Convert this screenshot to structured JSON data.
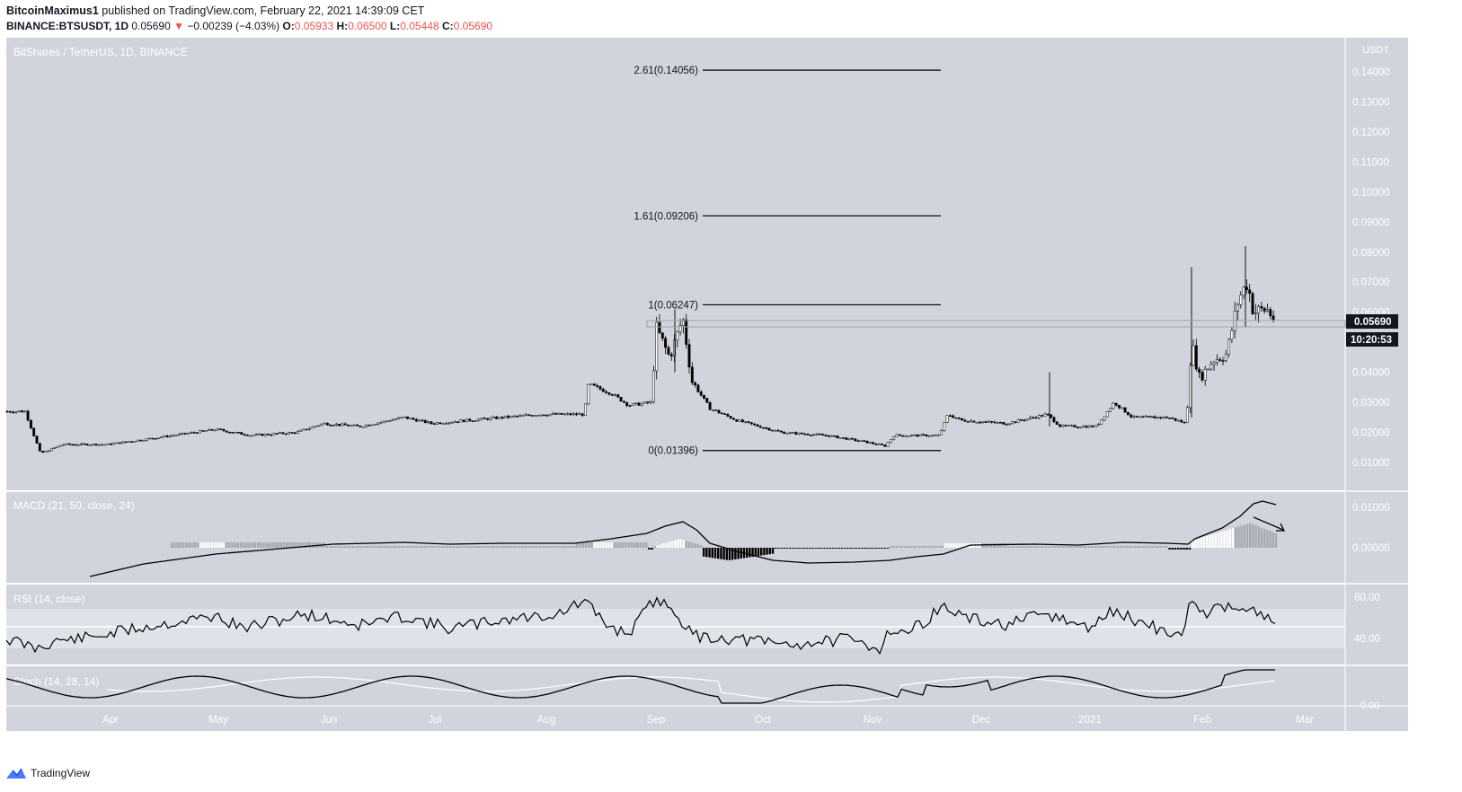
{
  "header": {
    "author": "BitcoinMaximus1",
    "published_text": " published on TradingView.com, February 22, 2021 14:39:09 CET",
    "symbol": "BINANCE:BTSUSDT, 1D",
    "last": "0.05690",
    "change": "−0.00239 (−4.03%)",
    "o_label": "O:",
    "o": "0.05933",
    "h_label": "H:",
    "h": "0.06500",
    "l_label": "L:",
    "l": "0.05448",
    "c_label": "C:",
    "c": "0.05690"
  },
  "panes": {
    "main_label": "BitShares / TetherUS, 1D, BINANCE",
    "macd_label": "MACD (21, 50, close, 24)",
    "rsi_label": "RSI (14, close)",
    "stoch_label": "Stoch (14, 28, 14)"
  },
  "price_axis": {
    "unit": "USDT",
    "ticks": [
      "0.14000",
      "0.13000",
      "0.12000",
      "0.11000",
      "0.10000",
      "0.09000",
      "0.08000",
      "0.07000",
      "0.06000",
      "0.05000",
      "0.04000",
      "0.03000",
      "0.02000",
      "0.01000"
    ],
    "current_price": "0.05690",
    "countdown": "10:20:53"
  },
  "macd_axis": {
    "ticks": [
      "0.01000",
      "0.00000"
    ]
  },
  "rsi_axis": {
    "ticks": [
      "80.00",
      "40.00"
    ]
  },
  "stoch_axis": {
    "ticks": [
      "0.00"
    ]
  },
  "time_axis": {
    "labels": [
      "Apr",
      "May",
      "Jun",
      "Jul",
      "Aug",
      "Sep",
      "Oct",
      "Nov",
      "Dec",
      "2021",
      "Feb",
      "Mar"
    ]
  },
  "fib_levels": [
    {
      "label": "2.61(0.14056)",
      "value": 0.14056
    },
    {
      "label": "1.61(0.09206)",
      "value": 0.09206
    },
    {
      "label": "1(0.06247)",
      "value": 0.06247
    },
    {
      "label": "0(0.01396)",
      "value": 0.01396
    }
  ],
  "chart_data": {
    "type": "line",
    "title": "BitShares / TetherUS, 1D, BINANCE",
    "ylabel": "USDT",
    "ylim": [
      0.0,
      0.145
    ],
    "categories": [
      "Apr",
      "May",
      "Jun",
      "Jul",
      "Aug",
      "Sep",
      "Oct",
      "Nov",
      "Dec",
      "2021",
      "Feb",
      "Mar"
    ],
    "series": [
      {
        "name": "BTSUSDT",
        "x": [
          "Mar",
          "Apr",
          "May",
          "Jun",
          "Jul",
          "Aug",
          "Aug",
          "Sep",
          "Sep",
          "Oct",
          "Nov",
          "Nov",
          "Dec",
          "Dec",
          "2021",
          "2021",
          "Feb",
          "Feb",
          "Feb"
        ],
        "values": [
          0.027,
          0.016,
          0.02,
          0.022,
          0.024,
          0.026,
          0.036,
          0.055,
          0.03,
          0.021,
          0.015,
          0.019,
          0.023,
          0.022,
          0.023,
          0.024,
          0.044,
          0.065,
          0.0569
        ]
      }
    ],
    "grid": true,
    "legend": "top-left"
  },
  "colors": {
    "pane_bg": "#d1d4dc",
    "rsi_band": "#dfe2e8",
    "up": "#ffffff",
    "down": "#000000",
    "accent_red": "#ef5350",
    "price_tag_bg": "#131722",
    "brand_blue": "#2962ff"
  },
  "footer": {
    "brand": "TradingView",
    "icon": "tradingview-logo-icon"
  }
}
